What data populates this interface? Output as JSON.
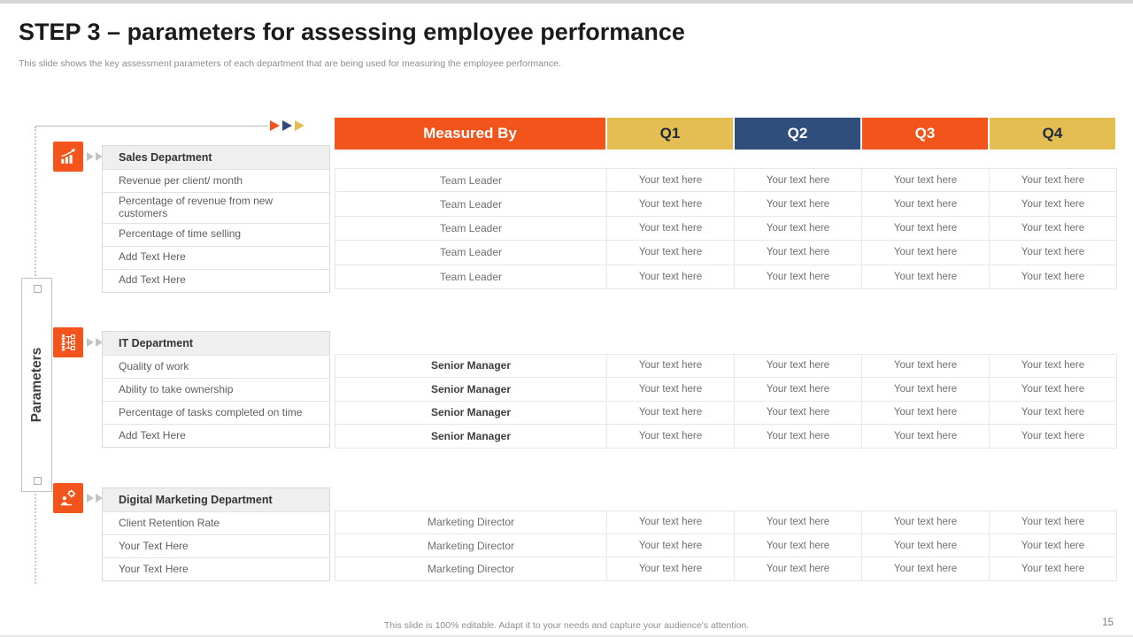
{
  "slide": {
    "title": "STEP 3 – parameters for assessing employee performance",
    "subtitle": "This slide shows the key assessment parameters of each department that are being used for measuring the employee performance.",
    "side_label": "Parameters",
    "footer": "This slide is 100% editable.  Adapt it to your needs and capture your audience's attention.",
    "page_number": "15"
  },
  "colors": {
    "orange": "#F2541B",
    "navy": "#2F4E7C",
    "yellow": "#E4BE52"
  },
  "table": {
    "columns": [
      "Measured By",
      "Q1",
      "Q2",
      "Q3",
      "Q4"
    ]
  },
  "sections": [
    {
      "department": "Sales Department",
      "icon": "bar-chart-growth-icon",
      "parameters": [
        "Revenue  per client/ month",
        "Percentage of revenue  from new customers",
        "Percentage of time selling",
        "Add Text Here",
        "Add Text Here"
      ],
      "measured_by": "Team Leader",
      "emphasis": false,
      "cell_text": "Your text here"
    },
    {
      "department": "IT Department",
      "icon": "org-hierarchy-icon",
      "parameters": [
        "Quality of work",
        "Ability to take ownership",
        "Percentage of tasks completed on time",
        "Add Text Here"
      ],
      "measured_by": "Senior Manager",
      "emphasis": true,
      "cell_text": "Your text here"
    },
    {
      "department": "Digital Marketing Department",
      "icon": "person-gear-icon",
      "parameters": [
        "Client Retention Rate",
        "Your Text Here",
        "Your Text Here"
      ],
      "measured_by": "Marketing Director",
      "emphasis": false,
      "cell_text": "Your text here"
    }
  ]
}
